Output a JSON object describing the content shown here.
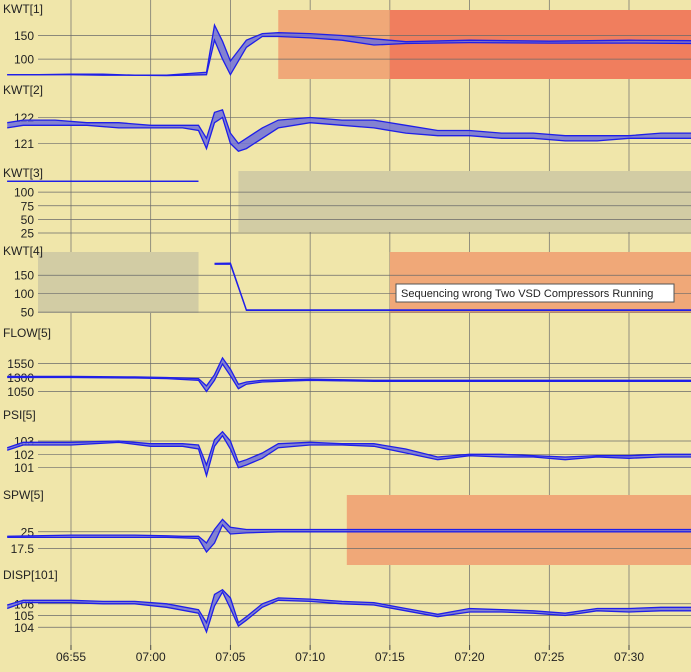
{
  "colors": {
    "background": "#f0e6aa",
    "grid": "#6a6a6a",
    "line": "#1f1fe8",
    "band_fill": "#7070d8",
    "alarm_light": "#f0a878",
    "alarm_dark": "#f07e5e",
    "inactive": "#d2cca4"
  },
  "time_axis": {
    "ticks": [
      "06:55",
      "07:00",
      "07:05",
      "07:10",
      "07:15",
      "07:20",
      "07:25",
      "07:30"
    ],
    "range": [
      "06:51",
      "07:34"
    ]
  },
  "tooltip": "Sequencing wrong Two VSD Compressors Running",
  "chart_data": [
    {
      "type": "line",
      "title": "KWT[1]",
      "yticks": [
        "150",
        "100"
      ],
      "ylim": [
        60,
        185
      ],
      "regions": [
        {
          "start": "07:08",
          "end": "07:15",
          "style": "alarm_light"
        },
        {
          "start": "07:15",
          "end": "07:34",
          "style": "alarm_dark"
        }
      ],
      "series": [
        {
          "x": [
            "06:51",
            "06:53",
            "06:55",
            "06:57",
            "06:59",
            "07:01",
            "07:03.5",
            "07:04",
            "07:04.5",
            "07:05",
            "07:06",
            "07:07",
            "07:08",
            "07:10",
            "07:12",
            "07:14",
            "07:16",
            "07:20",
            "07:25",
            "07:30",
            "07:34"
          ],
          "low": [
            67,
            67,
            67,
            66,
            66,
            65,
            67,
            140,
            100,
            67,
            125,
            148,
            148,
            145,
            140,
            130,
            133,
            135,
            134,
            134,
            133
          ],
          "high": [
            67,
            67,
            68,
            68,
            66,
            66,
            72,
            172,
            138,
            96,
            140,
            154,
            156,
            154,
            150,
            143,
            137,
            140,
            138,
            140,
            139
          ]
        }
      ]
    },
    {
      "type": "line",
      "title": "KWT[2]",
      "yticks": [
        "122",
        "121"
      ],
      "ylim": [
        120.4,
        122.6
      ],
      "regions": [],
      "series": [
        {
          "x": [
            "06:51",
            "06:52",
            "06:54",
            "06:56",
            "06:58",
            "07:00",
            "07:02",
            "07:03",
            "07:03.5",
            "07:04",
            "07:04.5",
            "07:05",
            "07:05.5",
            "07:06",
            "07:07",
            "07:08",
            "07:10",
            "07:12",
            "07:14",
            "07:16",
            "07:18",
            "07:20",
            "07:22",
            "07:24",
            "07:26",
            "07:28",
            "07:30",
            "07:32",
            "07:34"
          ],
          "low": [
            121.6,
            121.7,
            121.7,
            121.7,
            121.6,
            121.6,
            121.6,
            121.5,
            120.8,
            121.8,
            122.0,
            121.0,
            120.7,
            120.8,
            121.2,
            121.6,
            121.8,
            121.7,
            121.6,
            121.4,
            121.3,
            121.3,
            121.2,
            121.2,
            121.1,
            121.1,
            121.2,
            121.2,
            121.2
          ],
          "high": [
            121.8,
            121.9,
            121.9,
            121.8,
            121.8,
            121.7,
            121.7,
            121.7,
            121.2,
            122.2,
            122.3,
            121.4,
            121.0,
            121.2,
            121.6,
            121.9,
            122.0,
            121.9,
            121.9,
            121.7,
            121.5,
            121.5,
            121.4,
            121.4,
            121.3,
            121.3,
            121.3,
            121.4,
            121.4
          ]
        }
      ]
    },
    {
      "type": "line",
      "title": "KWT[3]",
      "yticks": [
        "100",
        "75",
        "50",
        "25"
      ],
      "ylim": [
        14,
        126
      ],
      "regions": [
        {
          "start": "07:05.5",
          "end": "07:34",
          "style": "inactive"
        }
      ],
      "series": [
        {
          "x": [
            "06:51",
            "07:03"
          ],
          "low": [
            120,
            120
          ],
          "high": [
            120,
            120
          ]
        }
      ]
    },
    {
      "type": "line",
      "title": "KWT[4]",
      "yticks": [
        "150",
        "100",
        "50"
      ],
      "ylim": [
        26,
        194
      ],
      "regions": [
        {
          "start": "06:51",
          "end": "07:03",
          "style": "inactive"
        },
        {
          "start": "07:15",
          "end": "07:34",
          "style": "alarm_light"
        }
      ],
      "series": [
        {
          "x": [
            "07:04",
            "07:05",
            "07:06",
            "07:10",
            "07:15",
            "07:20",
            "07:25",
            "07:30",
            "07:34"
          ],
          "low": [
            180,
            180,
            55,
            55,
            55,
            55,
            55,
            55,
            55
          ],
          "high": [
            182,
            183,
            56,
            56,
            56,
            56,
            56,
            56,
            56
          ]
        }
      ]
    },
    {
      "type": "line",
      "title": "FLOW[5]",
      "yticks": [
        "1550",
        "1300",
        "1050"
      ],
      "ylim": [
        880,
        1880
      ],
      "regions": [],
      "series": [
        {
          "x": [
            "06:51",
            "06:55",
            "06:59",
            "07:01",
            "07:03",
            "07:03.5",
            "07:04",
            "07:04.5",
            "07:05",
            "07:05.5",
            "07:06",
            "07:07",
            "07:10",
            "07:14",
            "07:18",
            "07:22",
            "07:26",
            "07:30",
            "07:34"
          ],
          "low": [
            1300,
            1300,
            1290,
            1280,
            1250,
            1050,
            1250,
            1540,
            1330,
            1100,
            1180,
            1220,
            1250,
            1230,
            1230,
            1230,
            1230,
            1230,
            1230
          ],
          "high": [
            1320,
            1320,
            1310,
            1300,
            1280,
            1150,
            1350,
            1650,
            1450,
            1180,
            1220,
            1250,
            1270,
            1250,
            1250,
            1250,
            1250,
            1250,
            1250
          ]
        }
      ]
    },
    {
      "type": "line",
      "title": "PSI[5]",
      "yticks": [
        "103",
        "102",
        "101"
      ],
      "ylim": [
        100.0,
        104.2
      ],
      "regions": [],
      "series": [
        {
          "x": [
            "06:51",
            "06:52",
            "06:55",
            "06:58",
            "07:00",
            "07:02",
            "07:03",
            "07:03.5",
            "07:04",
            "07:04.5",
            "07:05",
            "07:05.5",
            "07:06",
            "07:07",
            "07:08",
            "07:10",
            "07:12",
            "07:14",
            "07:16",
            "07:18",
            "07:20",
            "07:22",
            "07:24",
            "07:26",
            "07:28",
            "07:30",
            "07:32",
            "07:34"
          ],
          "low": [
            102.3,
            102.7,
            102.7,
            102.9,
            102.6,
            102.6,
            102.4,
            100.4,
            102.6,
            103.4,
            102.4,
            101.0,
            101.2,
            101.7,
            102.5,
            102.7,
            102.7,
            102.6,
            102.1,
            101.6,
            101.9,
            101.8,
            101.8,
            101.6,
            101.8,
            101.7,
            101.8,
            101.8
          ],
          "high": [
            102.5,
            102.9,
            102.9,
            103.0,
            102.8,
            102.8,
            102.7,
            101.2,
            103.1,
            103.7,
            103.0,
            101.4,
            101.6,
            102.1,
            102.8,
            102.9,
            102.8,
            102.8,
            102.4,
            101.8,
            102.0,
            102.0,
            101.9,
            101.8,
            101.9,
            101.9,
            102.0,
            102.0
          ]
        }
      ]
    },
    {
      "type": "line",
      "title": "SPW[5]",
      "yticks": [
        "25",
        "17.5"
      ],
      "ylim": [
        12,
        36
      ],
      "regions": [
        {
          "start": "07:12.3",
          "end": "07:34",
          "style": "alarm_light"
        }
      ],
      "series": [
        {
          "x": [
            "06:51",
            "06:55",
            "06:59",
            "07:01",
            "07:02",
            "07:03",
            "07:03.5",
            "07:04",
            "07:04.5",
            "07:05",
            "07:06",
            "07:08",
            "07:10",
            "07:14",
            "07:18",
            "07:22",
            "07:26",
            "07:30",
            "07:34"
          ],
          "low": [
            22.5,
            22.5,
            22.5,
            22.5,
            22.3,
            22.0,
            16.0,
            20.0,
            28.0,
            24.0,
            24.5,
            25.0,
            25.0,
            25.0,
            25.0,
            25.0,
            25.0,
            25.0,
            25.0
          ],
          "high": [
            23.0,
            23.5,
            23.5,
            23.2,
            23.0,
            23.0,
            20.0,
            26.0,
            30.5,
            27.0,
            26.0,
            26.0,
            26.0,
            26.0,
            26.0,
            26.0,
            26.0,
            26.0,
            26.0
          ]
        }
      ]
    },
    {
      "type": "line",
      "title": "DISP[101]",
      "yticks": [
        "106",
        "105",
        "104"
      ],
      "ylim": [
        103.0,
        107.6
      ],
      "regions": [],
      "series": [
        {
          "x": [
            "06:51",
            "06:52",
            "06:55",
            "06:57",
            "06:59",
            "07:01",
            "07:03",
            "07:03.5",
            "07:04",
            "07:04.5",
            "07:05",
            "07:05.5",
            "07:06",
            "07:07",
            "07:08",
            "07:10",
            "07:12",
            "07:14",
            "07:16",
            "07:18",
            "07:20",
            "07:22",
            "07:24",
            "07:26",
            "07:28",
            "07:30",
            "07:32",
            "07:34"
          ],
          "low": [
            105.6,
            106.1,
            106.1,
            106.0,
            106.0,
            105.7,
            105.2,
            103.6,
            105.8,
            107.0,
            105.6,
            104.1,
            104.6,
            105.7,
            106.3,
            106.2,
            106.0,
            105.9,
            105.4,
            104.9,
            105.3,
            105.3,
            105.2,
            105.0,
            105.4,
            105.3,
            105.4,
            105.4
          ],
          "high": [
            105.9,
            106.3,
            106.3,
            106.2,
            106.2,
            106.0,
            105.5,
            104.4,
            106.8,
            107.2,
            106.5,
            104.4,
            104.9,
            106.0,
            106.5,
            106.4,
            106.2,
            106.1,
            105.6,
            105.1,
            105.6,
            105.5,
            105.4,
            105.2,
            105.6,
            105.6,
            105.7,
            105.7
          ]
        }
      ]
    }
  ]
}
